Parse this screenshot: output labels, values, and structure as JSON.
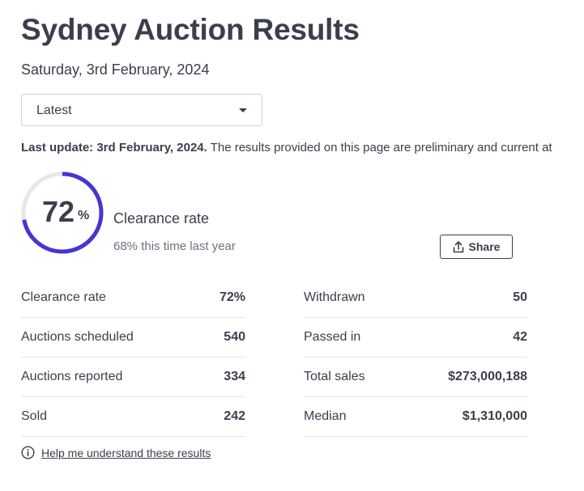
{
  "header": {
    "title": "Sydney Auction Results",
    "date": "Saturday, 3rd February, 2024"
  },
  "filter": {
    "selected": "Latest"
  },
  "notice": {
    "bold": "Last update: 3rd February, 2024.",
    "text": " The results provided on this page are preliminary and current at"
  },
  "summary": {
    "clearance_value": "72",
    "clearance_unit": "%",
    "clearance_fraction": 0.72,
    "clearance_label": "Clearance rate",
    "last_year": "68% this time last year",
    "share_label": "Share",
    "gauge_color": "#4535d4",
    "gauge_track_color": "#e6e7eb"
  },
  "stats_left": [
    {
      "label": "Clearance rate",
      "value": "72%"
    },
    {
      "label": "Auctions scheduled",
      "value": "540"
    },
    {
      "label": "Auctions reported",
      "value": "334"
    },
    {
      "label": "Sold",
      "value": "242"
    }
  ],
  "stats_right": [
    {
      "label": "Withdrawn",
      "value": "50"
    },
    {
      "label": "Passed in",
      "value": "42"
    },
    {
      "label": "Total sales",
      "value": "$273,000,188"
    },
    {
      "label": "Median",
      "value": "$1,310,000"
    }
  ],
  "help": {
    "link_text": "Help me understand these results",
    "icon": "info-icon"
  }
}
